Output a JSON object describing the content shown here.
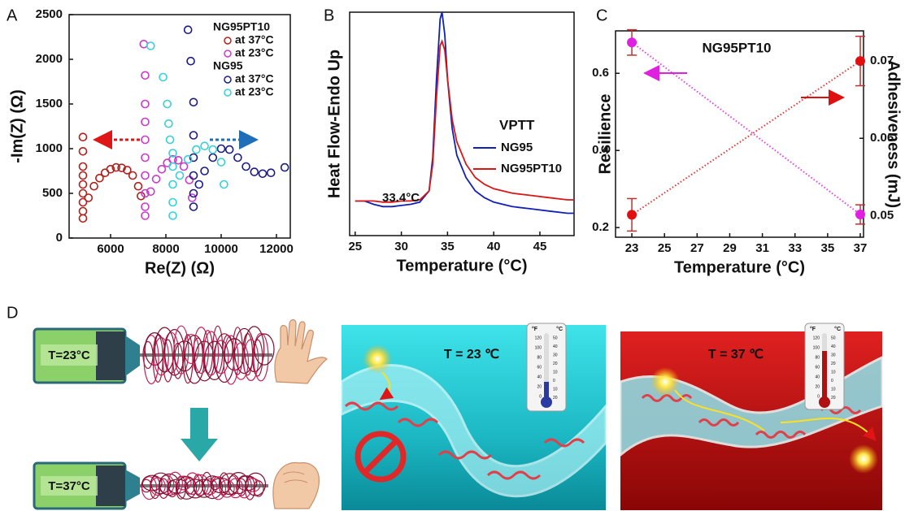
{
  "chart_data": [
    {
      "type": "scatter",
      "panel_label": "A",
      "xlabel": "Re(Z) (Ω)",
      "ylabel": "-Im(Z) (Ω)",
      "xlim": [
        4500,
        12500
      ],
      "xticks": [
        6000,
        8000,
        10000,
        12000
      ],
      "ylim": [
        0,
        2500
      ],
      "yticks": [
        0,
        500,
        1000,
        1500,
        2000,
        2500
      ],
      "series_groups": [
        {
          "name": "NG95PT10",
          "series": [
            {
              "name": "at 37°C",
              "color": "#b0201c",
              "x": [
                5000,
                5000,
                5000,
                5000,
                5000,
                5000,
                5000,
                5000,
                5000,
                5200,
                5400,
                5600,
                5800,
                6000,
                6200,
                6400,
                6600,
                6800,
                7000,
                7100
              ],
              "values": [
                220,
                300,
                400,
                500,
                600,
                700,
                800,
                970,
                1130,
                450,
                580,
                670,
                730,
                770,
                790,
                785,
                760,
                700,
                580,
                470
              ]
            },
            {
              "name": "at 23°C",
              "color": "#c83cc8",
              "x": [
                7250,
                7250,
                7250,
                7250,
                7250,
                7250,
                7250,
                7250,
                7250,
                7200,
                7450,
                7650,
                7850,
                8050,
                8250,
                8450,
                8650,
                8850,
                8950
              ],
              "values": [
                250,
                350,
                500,
                700,
                900,
                1100,
                1300,
                1500,
                1820,
                2170,
                520,
                660,
                770,
                840,
                880,
                870,
                800,
                650,
                450
              ]
            }
          ]
        },
        {
          "name": "NG95",
          "series": [
            {
              "name": "at 37°C",
              "color": "#1c1c86",
              "x": [
                9000,
                9000,
                9000,
                9000,
                9000,
                9000,
                8900,
                8800,
                9200,
                9400,
                9700,
                10000,
                10300,
                10600,
                10900,
                11200,
                11500,
                11800,
                12300
              ],
              "values": [
                350,
                500,
                700,
                900,
                1150,
                1520,
                1980,
                2330,
                600,
                750,
                900,
                1000,
                990,
                900,
                800,
                740,
                720,
                730,
                790
              ]
            },
            {
              "name": "at 23°C",
              "color": "#38d0d8",
              "x": [
                8250,
                8250,
                8250,
                8250,
                8250,
                8150,
                8100,
                8050,
                7900,
                7450,
                8500,
                8800,
                9100,
                9400,
                9700,
                10000,
                10100
              ],
              "values": [
                250,
                400,
                600,
                800,
                950,
                1100,
                1280,
                1500,
                1800,
                2150,
                700,
                880,
                990,
                1030,
                990,
                850,
                600
              ]
            }
          ]
        }
      ]
    },
    {
      "type": "line",
      "panel_label": "B",
      "xlabel": "Temperature (°C)",
      "ylabel": "Heat Flow-Endo Up",
      "xlim": [
        24.4,
        48.7
      ],
      "xticks": [
        25,
        30,
        35,
        40,
        45
      ],
      "ylim": [
        0,
        100
      ],
      "legend_title": "VPTT",
      "annotation": "33.4°C",
      "x": [
        25,
        26,
        27,
        28,
        29,
        30,
        31,
        32,
        33,
        33.4,
        33.8,
        34.2,
        34.4,
        34.7,
        35,
        35.5,
        36,
        37,
        38,
        39,
        40,
        42,
        44,
        46,
        48,
        48.7
      ],
      "series": [
        {
          "name": "NG95",
          "color": "#1020b8",
          "values": [
            15.5,
            15.5,
            14,
            13,
            13,
            13.5,
            14,
            15,
            20,
            35,
            70,
            97,
            100,
            90,
            70,
            48,
            36,
            26,
            20,
            17,
            15,
            13,
            12,
            11,
            10,
            10
          ]
        },
        {
          "name": "NG95PT10",
          "color": "#d81818",
          "values": [
            15.5,
            15.5,
            15.5,
            15,
            15,
            15.5,
            15.5,
            16,
            20,
            32,
            62,
            85,
            87,
            83,
            70,
            52,
            42,
            32,
            26,
            23,
            21,
            19,
            18,
            17,
            16,
            16
          ]
        }
      ]
    },
    {
      "type": "dual_scatter",
      "panel_label": "C",
      "xlabel": "Temperature (°C)",
      "ylabel": "Resilience",
      "y2label": "Adhesiveness (mJ)",
      "annotation": "NG95PT10",
      "xlim": [
        22,
        37.2
      ],
      "xticks": [
        23,
        25,
        27,
        29,
        31,
        33,
        35,
        37
      ],
      "ylim": [
        0.175,
        0.71
      ],
      "yticks": [
        0.2,
        0.4,
        0.6
      ],
      "y2lim": [
        0.0472,
        0.0739
      ],
      "y2ticks": [
        0.05,
        0.06,
        0.07
      ],
      "x": [
        23,
        37
      ],
      "series": [
        {
          "color": "#e020e0",
          "axis": "y",
          "values": [
            0.68,
            0.234
          ],
          "errors": [
            0.033,
            0.025
          ]
        },
        {
          "color": "#e01010",
          "axis": "y2",
          "values": [
            0.0501,
            0.07
          ],
          "errors": [
            0.0021,
            0.0032
          ]
        }
      ]
    }
  ],
  "panel_d": {
    "label": "D",
    "device_labels": [
      "T=23°C",
      "T=37°C"
    ],
    "scene_labels": [
      "T = 23 ℃",
      "T = 37 ℃"
    ],
    "thermometer": {
      "f_unit": "°F",
      "c_unit": "°C",
      "f_scale": [
        "120",
        "100",
        "80",
        "60",
        "40",
        "20",
        "0"
      ],
      "c_scale": [
        "50",
        "40",
        "30",
        "20",
        "10",
        "0",
        "10",
        "20"
      ]
    }
  }
}
